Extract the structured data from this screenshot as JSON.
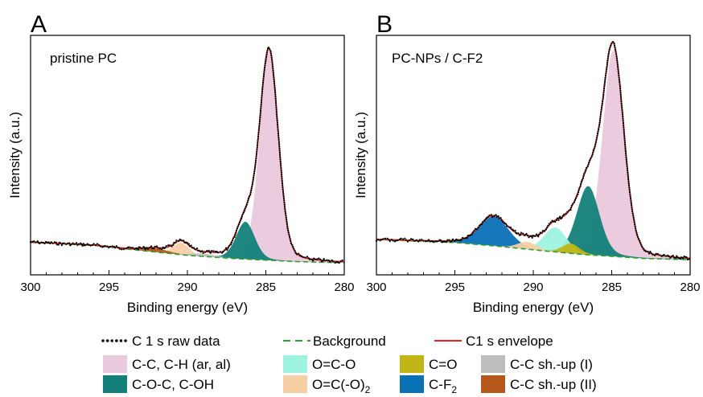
{
  "colors": {
    "raw_data": "#000000",
    "background_line": "#2ca02c",
    "envelope": "#e8241c",
    "cc_ch": "#e9c9dc",
    "coc": "#137f79",
    "oco": "#9ef3de",
    "oco2": "#f8cfa5",
    "co": "#c1b517",
    "cf2": "#0a71b6",
    "shup1": "#bdbdbd",
    "shup2": "#b5571a"
  },
  "chart_data": [
    {
      "type": "area",
      "panel_letter": "A",
      "annotation": "pristine PC",
      "xlabel": "Binding energy (eV)",
      "ylabel": "Intensity (a.u.)",
      "xlim": [
        300,
        280
      ],
      "x_reversed": true,
      "x_ticks": [
        "300",
        "295",
        "290",
        "285",
        "280"
      ],
      "y_ticks_labeled": false,
      "grid": false,
      "background_points": {
        "x": [
          300,
          296,
          293,
          290,
          287,
          283,
          280
        ],
        "y": [
          0.088,
          0.075,
          0.053,
          0.032,
          0.018,
          0.005,
          0.0
        ]
      },
      "components": [
        {
          "name": "C-C, C-H (ar, al)",
          "color_key": "cc_ch",
          "center": 284.8,
          "height": 0.9,
          "fwhm": 1.4
        },
        {
          "name": "C-O-C, C-OH",
          "color_key": "coc",
          "center": 286.3,
          "height": 0.16,
          "fwhm": 1.4
        },
        {
          "name": "O=C(-O)2",
          "color_key": "oco2",
          "center": 290.4,
          "height": 0.05,
          "fwhm": 1.2
        },
        {
          "name": "C-C sh.-up (II)",
          "color_key": "shup2",
          "center": 292.0,
          "height": 0.015,
          "fwhm": 2.0
        },
        {
          "name": "C-C sh.-up (I)",
          "color_key": "shup1",
          "center": 289.0,
          "height": 0.012,
          "fwhm": 2.0
        }
      ]
    },
    {
      "type": "area",
      "panel_letter": "B",
      "annotation": "PC-NPs / C-F2",
      "xlabel": "Binding energy (eV)",
      "ylabel": "Intensity (a.u.)",
      "xlim": [
        300,
        280
      ],
      "x_reversed": true,
      "x_ticks": [
        "300",
        "295",
        "290",
        "285",
        "280"
      ],
      "y_ticks_labeled": false,
      "grid": false,
      "background_points": {
        "x": [
          300,
          295,
          292,
          289,
          287,
          283,
          280
        ],
        "y": [
          0.085,
          0.073,
          0.056,
          0.037,
          0.025,
          0.008,
          0.003
        ]
      },
      "components": [
        {
          "name": "C-C, C-H (ar, al)",
          "color_key": "cc_ch",
          "center": 284.9,
          "height": 0.84,
          "fwhm": 1.6
        },
        {
          "name": "C-O-C, C-OH",
          "color_key": "coc",
          "center": 286.5,
          "height": 0.28,
          "fwhm": 1.7
        },
        {
          "name": "O=C-O",
          "color_key": "oco",
          "center": 288.6,
          "height": 0.1,
          "fwhm": 1.7
        },
        {
          "name": "C=O",
          "color_key": "co",
          "center": 287.6,
          "height": 0.04,
          "fwhm": 1.3
        },
        {
          "name": "O=C(-O)2",
          "color_key": "oco2",
          "center": 290.4,
          "height": 0.03,
          "fwhm": 1.4
        },
        {
          "name": "C-F2",
          "color_key": "cf2",
          "center": 292.5,
          "height": 0.12,
          "fwhm": 2.2
        }
      ]
    }
  ],
  "legend": {
    "row1": [
      {
        "key": "raw_data",
        "style": "dots",
        "label": "C 1 s raw data"
      },
      {
        "key": "background_line",
        "style": "dashed",
        "label": "Background"
      },
      {
        "key": "envelope",
        "style": "line",
        "label": "C1 s envelope"
      }
    ],
    "swatches": [
      {
        "color_key": "cc_ch",
        "label": "C-C, C-H (ar, al)",
        "sub": ""
      },
      {
        "color_key": "oco",
        "label": "O=C-O",
        "sub": ""
      },
      {
        "color_key": "co",
        "label": "C=O",
        "sub": ""
      },
      {
        "color_key": "shup1",
        "label": "C-C sh.-up (I)",
        "sub": ""
      },
      {
        "color_key": "coc",
        "label": "C-O-C, C-OH",
        "sub": ""
      },
      {
        "color_key": "oco2",
        "label": "O=C(-O)",
        "sub": "2"
      },
      {
        "color_key": "cf2",
        "label": "C-F",
        "sub": "2"
      },
      {
        "color_key": "shup2",
        "label": "C-C sh.-up (II)",
        "sub": ""
      }
    ]
  }
}
